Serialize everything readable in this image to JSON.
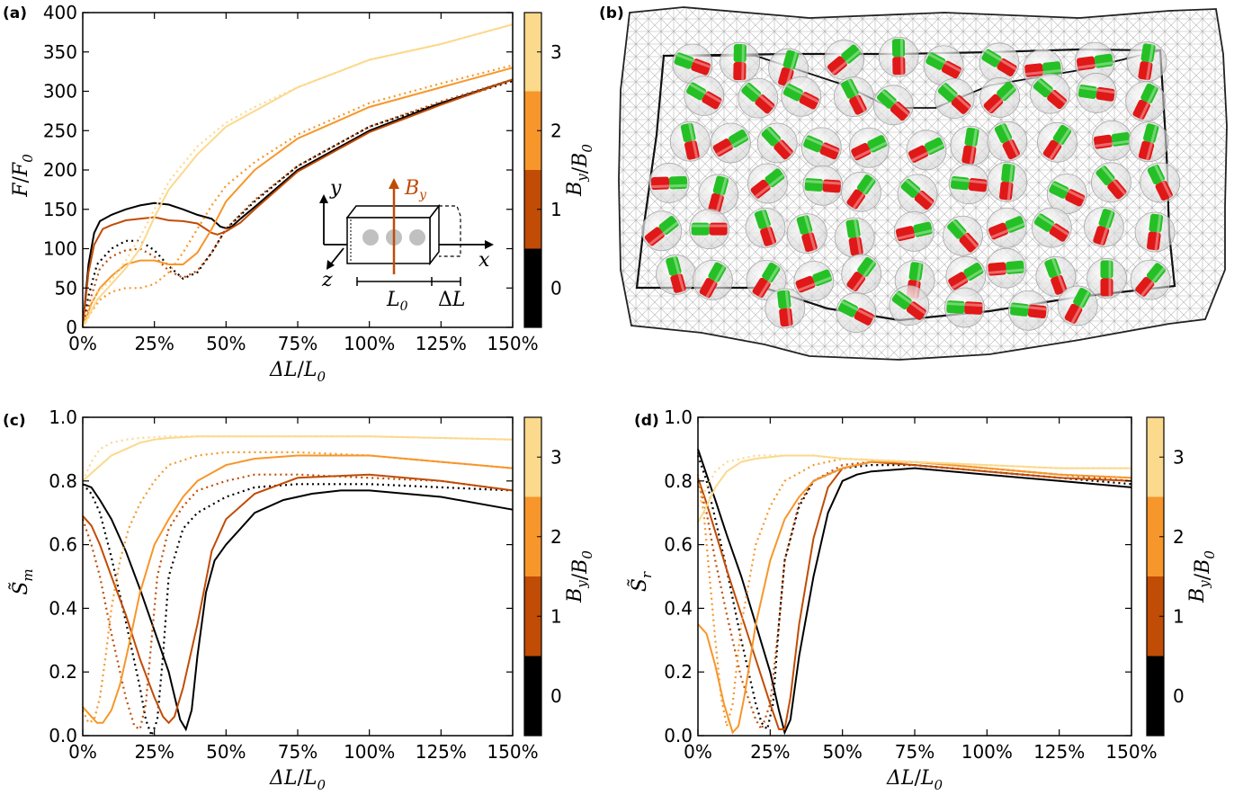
{
  "panel_labels": {
    "a": "(a)",
    "b": "(b)",
    "c": "(c)",
    "d": "(d)"
  },
  "colors": {
    "B0": "#000000",
    "B1": "#c04c05",
    "B2": "#f7962a",
    "B3": "#fbd98d"
  },
  "colorbar": {
    "label": "B_y/B_0",
    "ticks": [
      "0",
      "1",
      "2",
      "3"
    ],
    "colors": [
      "#000000",
      "#c04c05",
      "#f7962a",
      "#fbd98d"
    ]
  },
  "inset": {
    "y_label": "y",
    "x_label": "x",
    "z_label": "z",
    "b_label": "B_y",
    "l0_label": "L_0",
    "dl_label": "ΔL"
  },
  "image_b_icons": {
    "cylinder": "magnetic-rod-icon",
    "mesh": "elastic-mesh-icon"
  },
  "chart_data": [
    {
      "id": "a",
      "type": "line",
      "xlabel": "ΔL/L_0",
      "ylabel": "F/F_0",
      "xlim": [
        0,
        150
      ],
      "ylim": [
        0,
        400
      ],
      "xticks": [
        "0%",
        "25%",
        "50%",
        "75%",
        "100%",
        "125%",
        "150%"
      ],
      "yticks": [
        "0",
        "50",
        "100",
        "150",
        "200",
        "250",
        "300",
        "350",
        "400"
      ],
      "series": [
        {
          "color": "#000000",
          "style": "solid",
          "x": [
            0,
            2,
            4,
            6,
            10,
            15,
            20,
            25,
            30,
            35,
            40,
            45,
            48,
            50,
            52,
            55,
            60,
            75,
            100,
            125,
            150
          ],
          "y": [
            0,
            80,
            120,
            135,
            143,
            150,
            155,
            158,
            156,
            150,
            143,
            138,
            128,
            126,
            128,
            138,
            153,
            200,
            250,
            285,
            315
          ]
        },
        {
          "color": "#000000",
          "style": "dotted",
          "x": [
            0,
            2,
            5,
            10,
            15,
            20,
            25,
            30,
            35,
            40,
            45,
            50,
            60,
            75,
            100,
            125,
            150
          ],
          "y": [
            0,
            40,
            80,
            100,
            110,
            110,
            98,
            78,
            62,
            70,
            95,
            125,
            160,
            205,
            255,
            285,
            313
          ]
        },
        {
          "color": "#c04c05",
          "style": "solid",
          "x": [
            0,
            2,
            4,
            7,
            10,
            15,
            20,
            25,
            30,
            35,
            40,
            45,
            47,
            50,
            55,
            60,
            75,
            100,
            125,
            150
          ],
          "y": [
            0,
            70,
            105,
            125,
            130,
            136,
            138,
            140,
            136,
            135,
            132,
            120,
            118,
            122,
            133,
            150,
            198,
            248,
            283,
            315
          ]
        },
        {
          "color": "#c04c05",
          "style": "dotted",
          "x": [
            0,
            3,
            6,
            10,
            15,
            20,
            25,
            30,
            35,
            40,
            45,
            50,
            60,
            75,
            100,
            125,
            150
          ],
          "y": [
            0,
            40,
            75,
            90,
            98,
            100,
            90,
            72,
            63,
            72,
            95,
            125,
            162,
            205,
            255,
            287,
            315
          ]
        },
        {
          "color": "#f7962a",
          "style": "solid",
          "x": [
            0,
            3,
            6,
            10,
            15,
            20,
            25,
            30,
            35,
            40,
            45,
            50,
            60,
            75,
            100,
            125,
            150
          ],
          "y": [
            0,
            30,
            50,
            65,
            80,
            85,
            85,
            80,
            80,
            95,
            125,
            160,
            200,
            240,
            280,
            305,
            330
          ]
        },
        {
          "color": "#f7962a",
          "style": "dotted",
          "x": [
            0,
            3,
            6,
            10,
            15,
            20,
            25,
            30,
            35,
            40,
            45,
            50,
            60,
            75,
            100,
            125,
            150
          ],
          "y": [
            0,
            20,
            35,
            45,
            50,
            50,
            55,
            70,
            95,
            125,
            155,
            180,
            210,
            245,
            285,
            310,
            333
          ]
        },
        {
          "color": "#fbd98d",
          "style": "solid",
          "x": [
            0,
            5,
            10,
            15,
            20,
            25,
            30,
            40,
            50,
            60,
            75,
            100,
            125,
            150
          ],
          "y": [
            0,
            35,
            55,
            75,
            100,
            140,
            175,
            220,
            255,
            275,
            305,
            340,
            360,
            385
          ]
        },
        {
          "color": "#fbd98d",
          "style": "dotted",
          "x": [
            0,
            5,
            10,
            15,
            20,
            25,
            30,
            40,
            50,
            60,
            75,
            100,
            125,
            150
          ],
          "y": [
            0,
            45,
            60,
            85,
            115,
            150,
            185,
            230,
            260,
            280,
            305,
            340,
            360,
            385
          ]
        }
      ]
    },
    {
      "id": "c",
      "type": "line",
      "xlabel": "ΔL/L_0",
      "ylabel": "S̃_m",
      "xlim": [
        0,
        150
      ],
      "ylim": [
        0,
        1
      ],
      "xticks": [
        "0%",
        "25%",
        "50%",
        "75%",
        "100%",
        "125%",
        "150%"
      ],
      "yticks": [
        "0.0",
        "0.2",
        "0.4",
        "0.6",
        "0.8",
        "1.0"
      ],
      "series": [
        {
          "color": "#000000",
          "style": "solid",
          "x": [
            0,
            3,
            6,
            10,
            15,
            20,
            25,
            30,
            34,
            36,
            38,
            40,
            43,
            46,
            50,
            55,
            60,
            70,
            80,
            90,
            100,
            125,
            150
          ],
          "y": [
            0.79,
            0.78,
            0.74,
            0.68,
            0.58,
            0.46,
            0.33,
            0.2,
            0.05,
            0.02,
            0.08,
            0.25,
            0.45,
            0.55,
            0.6,
            0.65,
            0.7,
            0.74,
            0.76,
            0.77,
            0.77,
            0.75,
            0.71
          ]
        },
        {
          "color": "#000000",
          "style": "dotted",
          "x": [
            0,
            3,
            6,
            10,
            15,
            20,
            22,
            24,
            26,
            28,
            30,
            35,
            40,
            50,
            60,
            75,
            100,
            125,
            150
          ],
          "y": [
            0.79,
            0.76,
            0.7,
            0.56,
            0.36,
            0.15,
            0.05,
            0.0,
            0.05,
            0.25,
            0.5,
            0.65,
            0.7,
            0.75,
            0.78,
            0.79,
            0.79,
            0.78,
            0.77
          ]
        },
        {
          "color": "#c04c05",
          "style": "solid",
          "x": [
            0,
            3,
            6,
            10,
            15,
            20,
            25,
            28,
            30,
            32,
            35,
            40,
            45,
            50,
            55,
            60,
            75,
            100,
            125,
            150
          ],
          "y": [
            0.69,
            0.66,
            0.6,
            0.5,
            0.38,
            0.24,
            0.12,
            0.06,
            0.04,
            0.06,
            0.15,
            0.35,
            0.58,
            0.68,
            0.72,
            0.76,
            0.81,
            0.82,
            0.8,
            0.77
          ]
        },
        {
          "color": "#c04c05",
          "style": "dotted",
          "x": [
            0,
            3,
            6,
            10,
            15,
            18,
            20,
            22,
            24,
            26,
            30,
            35,
            40,
            50,
            60,
            75,
            100,
            125,
            150
          ],
          "y": [
            0.68,
            0.6,
            0.5,
            0.32,
            0.12,
            0.03,
            0.02,
            0.1,
            0.3,
            0.5,
            0.65,
            0.72,
            0.77,
            0.8,
            0.82,
            0.82,
            0.81,
            0.8,
            0.77
          ]
        },
        {
          "color": "#f7962a",
          "style": "solid",
          "x": [
            0,
            3,
            5,
            7,
            10,
            13,
            16,
            20,
            25,
            30,
            35,
            40,
            50,
            60,
            75,
            100,
            125,
            150
          ],
          "y": [
            0.09,
            0.06,
            0.04,
            0.04,
            0.08,
            0.16,
            0.28,
            0.45,
            0.6,
            0.68,
            0.75,
            0.8,
            0.85,
            0.87,
            0.88,
            0.88,
            0.86,
            0.84
          ]
        },
        {
          "color": "#f7962a",
          "style": "dotted",
          "x": [
            0,
            2,
            4,
            6,
            8,
            10,
            13,
            16,
            20,
            25,
            30,
            40,
            50,
            75,
            100,
            125,
            150
          ],
          "y": [
            0.08,
            0.04,
            0.05,
            0.12,
            0.25,
            0.4,
            0.55,
            0.65,
            0.73,
            0.8,
            0.85,
            0.88,
            0.89,
            0.89,
            0.88,
            0.86,
            0.84
          ]
        },
        {
          "color": "#fbd98d",
          "style": "solid",
          "x": [
            0,
            5,
            10,
            15,
            20,
            25,
            30,
            40,
            50,
            75,
            100,
            125,
            150
          ],
          "y": [
            0.8,
            0.84,
            0.88,
            0.9,
            0.92,
            0.93,
            0.935,
            0.94,
            0.94,
            0.94,
            0.94,
            0.935,
            0.93
          ]
        },
        {
          "color": "#fbd98d",
          "style": "dotted",
          "x": [
            0,
            3,
            6,
            10,
            15,
            20,
            30,
            40,
            50,
            75,
            100,
            125,
            150
          ],
          "y": [
            0.8,
            0.86,
            0.9,
            0.92,
            0.93,
            0.935,
            0.94,
            0.94,
            0.94,
            0.94,
            0.94,
            0.935,
            0.93
          ]
        }
      ]
    },
    {
      "id": "d",
      "type": "line",
      "xlabel": "ΔL/L_0",
      "ylabel": "S̃_r",
      "xlim": [
        0,
        150
      ],
      "ylim": [
        0,
        1
      ],
      "xticks": [
        "0%",
        "25%",
        "50%",
        "75%",
        "100%",
        "125%",
        "150%"
      ],
      "yticks": [
        "0.0",
        "0.2",
        "0.4",
        "0.6",
        "0.8",
        "1.0"
      ],
      "series": [
        {
          "color": "#000000",
          "style": "solid",
          "x": [
            0,
            3,
            6,
            10,
            15,
            20,
            25,
            28,
            30,
            32,
            35,
            40,
            45,
            50,
            55,
            60,
            75,
            100,
            125,
            150
          ],
          "y": [
            0.9,
            0.82,
            0.74,
            0.63,
            0.5,
            0.35,
            0.2,
            0.08,
            0.01,
            0.05,
            0.25,
            0.5,
            0.7,
            0.8,
            0.82,
            0.83,
            0.84,
            0.82,
            0.8,
            0.78
          ]
        },
        {
          "color": "#000000",
          "style": "dotted",
          "x": [
            0,
            3,
            6,
            10,
            15,
            20,
            22,
            24,
            26,
            28,
            30,
            35,
            40,
            50,
            60,
            75,
            100,
            125,
            150
          ],
          "y": [
            0.88,
            0.8,
            0.68,
            0.52,
            0.3,
            0.1,
            0.04,
            0.02,
            0.1,
            0.35,
            0.55,
            0.72,
            0.8,
            0.84,
            0.85,
            0.85,
            0.83,
            0.81,
            0.79
          ]
        },
        {
          "color": "#c04c05",
          "style": "solid",
          "x": [
            0,
            3,
            6,
            10,
            15,
            20,
            25,
            28,
            30,
            32,
            35,
            40,
            45,
            50,
            60,
            75,
            100,
            125,
            150
          ],
          "y": [
            0.81,
            0.73,
            0.64,
            0.52,
            0.38,
            0.24,
            0.1,
            0.02,
            0.02,
            0.12,
            0.35,
            0.62,
            0.78,
            0.84,
            0.86,
            0.85,
            0.83,
            0.81,
            0.8
          ]
        },
        {
          "color": "#c04c05",
          "style": "dotted",
          "x": [
            0,
            3,
            6,
            10,
            15,
            20,
            22,
            25,
            28,
            30,
            35,
            40,
            50,
            60,
            75,
            100,
            125,
            150
          ],
          "y": [
            0.8,
            0.7,
            0.55,
            0.38,
            0.18,
            0.05,
            0.02,
            0.1,
            0.35,
            0.55,
            0.73,
            0.8,
            0.85,
            0.86,
            0.86,
            0.84,
            0.82,
            0.8
          ]
        },
        {
          "color": "#f7962a",
          "style": "solid",
          "x": [
            0,
            3,
            6,
            9,
            12,
            14,
            16,
            20,
            25,
            30,
            35,
            40,
            50,
            60,
            75,
            100,
            125,
            150
          ],
          "y": [
            0.35,
            0.32,
            0.22,
            0.1,
            0.01,
            0.03,
            0.12,
            0.35,
            0.55,
            0.68,
            0.75,
            0.8,
            0.84,
            0.86,
            0.86,
            0.84,
            0.82,
            0.81
          ]
        },
        {
          "color": "#f7962a",
          "style": "dotted",
          "x": [
            0,
            2,
            4,
            6,
            8,
            10,
            12,
            15,
            20,
            25,
            30,
            40,
            50,
            75,
            100,
            125,
            150
          ],
          "y": [
            0.82,
            0.7,
            0.5,
            0.3,
            0.12,
            0.03,
            0.1,
            0.35,
            0.6,
            0.72,
            0.8,
            0.85,
            0.87,
            0.86,
            0.84,
            0.82,
            0.81
          ]
        },
        {
          "color": "#fbd98d",
          "style": "solid",
          "x": [
            0,
            3,
            6,
            10,
            15,
            20,
            30,
            40,
            50,
            75,
            100,
            125,
            150
          ],
          "y": [
            0.67,
            0.72,
            0.78,
            0.83,
            0.86,
            0.87,
            0.88,
            0.88,
            0.87,
            0.86,
            0.85,
            0.84,
            0.84
          ]
        },
        {
          "color": "#fbd98d",
          "style": "dotted",
          "x": [
            0,
            3,
            6,
            10,
            15,
            20,
            30,
            40,
            50,
            75,
            100,
            125,
            150
          ],
          "y": [
            0.72,
            0.78,
            0.83,
            0.86,
            0.87,
            0.88,
            0.88,
            0.88,
            0.87,
            0.86,
            0.85,
            0.84,
            0.84
          ]
        }
      ]
    }
  ]
}
